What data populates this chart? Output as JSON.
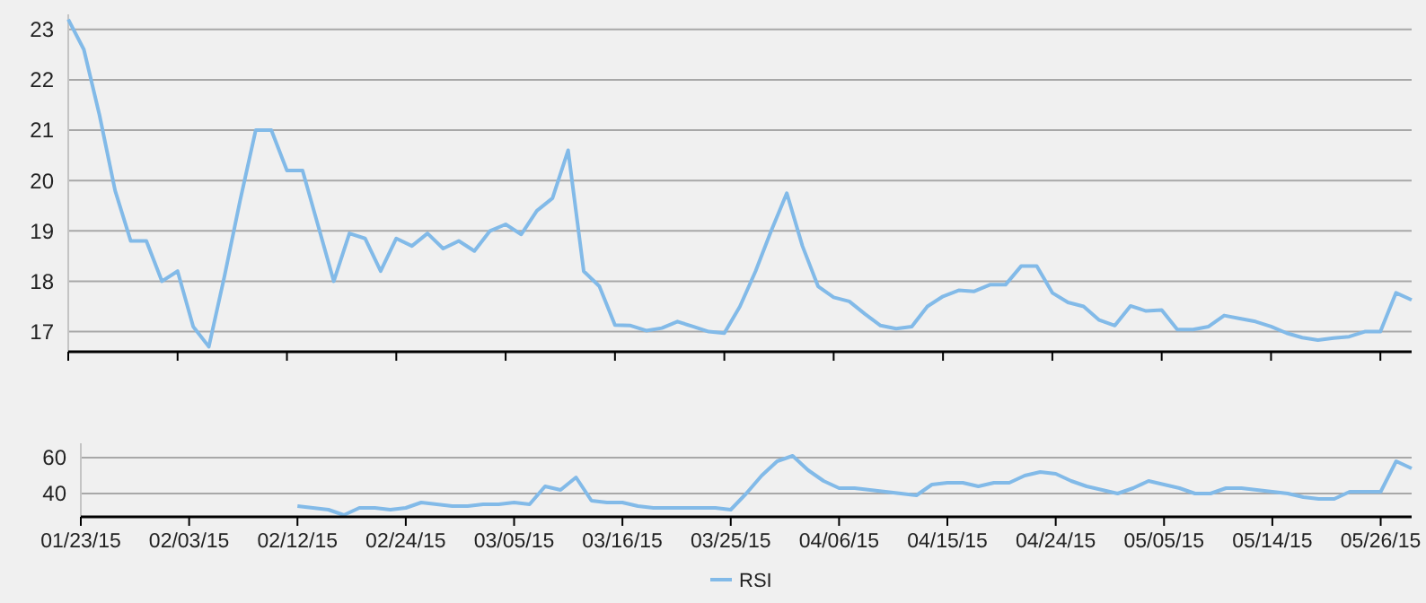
{
  "chart_data": [
    {
      "type": "line",
      "categories": [
        null,
        null,
        null,
        null,
        null,
        null,
        null,
        null,
        null,
        null,
        null,
        null,
        null,
        null,
        null,
        null,
        null,
        null,
        null,
        null,
        null,
        null,
        null,
        null,
        null,
        null,
        null,
        null,
        null,
        null,
        null,
        null,
        null,
        null,
        null,
        null,
        null,
        null,
        null,
        null,
        null,
        null,
        null,
        null,
        null,
        null,
        null,
        null,
        null,
        null,
        null,
        null,
        null,
        null,
        null,
        null,
        null,
        null,
        null,
        null,
        null,
        null,
        null,
        null,
        null,
        null,
        null,
        null,
        null,
        null,
        null,
        null,
        null,
        null,
        null,
        null,
        null,
        null,
        null,
        null,
        null,
        null,
        null,
        null,
        null,
        null,
        null
      ],
      "series": [
        {
          "color": "#82bae8",
          "values": [
            23.2,
            22.6,
            21.3,
            19.8,
            18.8,
            18.8,
            18.0,
            18.2,
            17.1,
            16.7,
            18.1,
            19.6,
            21.0,
            21.0,
            20.2,
            20.2,
            19.1,
            18.0,
            18.95,
            18.85,
            18.2,
            18.85,
            18.7,
            18.95,
            18.65,
            18.8,
            18.6,
            19.0,
            19.13,
            18.93,
            19.4,
            19.65,
            20.6,
            18.2,
            17.9,
            17.13,
            17.12,
            17.02,
            17.07,
            17.2,
            17.1,
            17.0,
            16.97,
            17.5,
            18.2,
            19.0,
            19.75,
            18.7,
            17.9,
            17.68,
            17.6,
            17.35,
            17.12,
            17.06,
            17.1,
            17.5,
            17.7,
            17.82,
            17.8,
            17.93,
            17.93,
            18.3,
            18.3,
            17.77,
            17.58,
            17.5,
            17.23,
            17.12,
            17.51,
            17.41,
            17.43,
            17.04,
            17.04,
            17.1,
            17.32,
            17.26,
            17.2,
            17.1,
            16.97,
            16.88,
            16.83,
            16.87,
            16.9,
            17.0,
            17.0,
            17.77,
            17.63
          ]
        }
      ],
      "ylim": [
        16.6,
        23.3
      ],
      "yticks": [
        17,
        18,
        19,
        20,
        21,
        22,
        23
      ],
      "grid": "y",
      "tick_labels": "y"
    },
    {
      "type": "line",
      "categories": [
        "01/23/15",
        null,
        null,
        null,
        null,
        null,
        null,
        "02/03/15",
        null,
        null,
        null,
        null,
        null,
        null,
        "02/12/15",
        null,
        null,
        null,
        null,
        null,
        null,
        "02/24/15",
        null,
        null,
        null,
        null,
        null,
        null,
        "03/05/15",
        null,
        null,
        null,
        null,
        null,
        null,
        "03/16/15",
        null,
        null,
        null,
        null,
        null,
        null,
        "03/25/15",
        null,
        null,
        null,
        null,
        null,
        null,
        "04/06/15",
        null,
        null,
        null,
        null,
        null,
        null,
        "04/15/15",
        null,
        null,
        null,
        null,
        null,
        null,
        "04/24/15",
        null,
        null,
        null,
        null,
        null,
        null,
        "05/05/15",
        null,
        null,
        null,
        null,
        null,
        null,
        "05/14/15",
        null,
        null,
        null,
        null,
        null,
        null,
        "05/26/15",
        null,
        null
      ],
      "series": [
        {
          "name": "RSI",
          "color": "#82bae8",
          "values": [
            null,
            null,
            null,
            null,
            null,
            null,
            null,
            null,
            null,
            null,
            null,
            null,
            null,
            null,
            33,
            32,
            31,
            28,
            32,
            32,
            31,
            32,
            35,
            34,
            33,
            33,
            34,
            34,
            35,
            34,
            44,
            42,
            49,
            36,
            35,
            35,
            33,
            32,
            32,
            32,
            32,
            32,
            31,
            40,
            50,
            58,
            61,
            53,
            47,
            43,
            43,
            42,
            41,
            40,
            39,
            45,
            46,
            46,
            44,
            46,
            46,
            50,
            52,
            51,
            47,
            44,
            42,
            40,
            43,
            47,
            45,
            43,
            40,
            40,
            43,
            43,
            42,
            41,
            40,
            38,
            37,
            37,
            41,
            41,
            41,
            58,
            54
          ]
        }
      ],
      "ylim": [
        27,
        68
      ],
      "yticks": [
        40,
        60
      ],
      "grid": "y",
      "legend": "bottom"
    }
  ]
}
